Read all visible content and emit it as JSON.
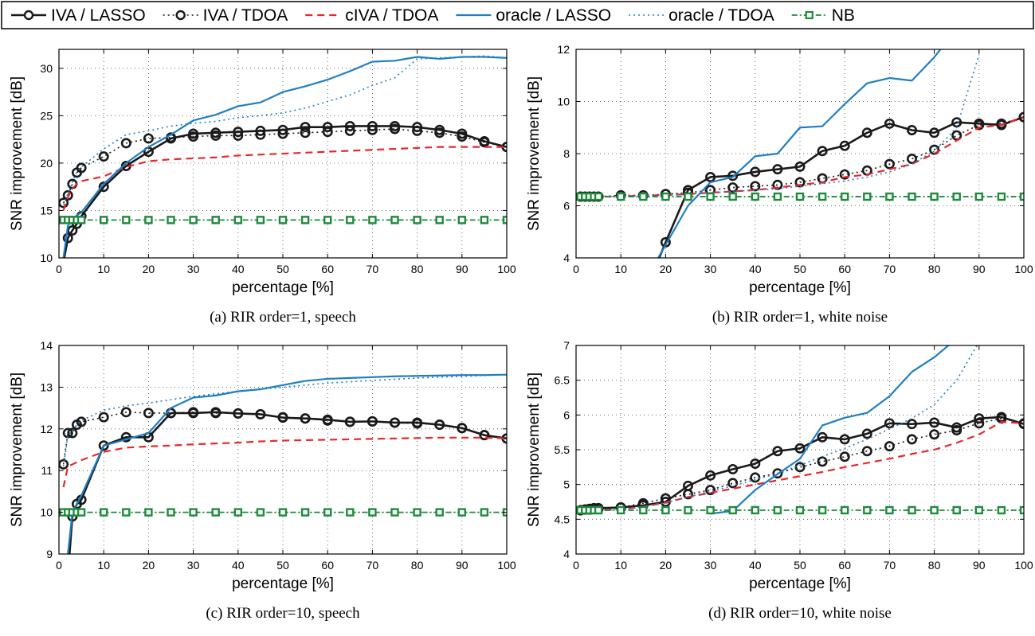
{
  "legend": [
    {
      "label": "IVA / LASSO",
      "color": "#1a1a1a",
      "style": "solid",
      "marker": "circle"
    },
    {
      "label": "IVA / TDOA",
      "color": "#1a1a1a",
      "style": "dotted",
      "marker": "circle"
    },
    {
      "label": "cIVA / TDOA",
      "color": "#e8282b",
      "style": "dashed",
      "marker": "none"
    },
    {
      "label": "oracle / LASSO",
      "color": "#1f7fc2",
      "style": "solid",
      "marker": "none"
    },
    {
      "label": "oracle / TDOA",
      "color": "#1f7fc2",
      "style": "dotted",
      "marker": "none"
    },
    {
      "label": "NB",
      "color": "#1e8a3c",
      "style": "dashdot",
      "marker": "square"
    }
  ],
  "chart_data": [
    {
      "id": "a",
      "type": "line",
      "caption": "(a) RIR order=1, speech",
      "xlabel": "percentage [%]",
      "ylabel": "SNR improvement [dB]",
      "xlim": [
        0,
        100
      ],
      "ylim": [
        10,
        32
      ],
      "xticks": [
        0,
        10,
        20,
        30,
        40,
        50,
        60,
        70,
        80,
        90,
        100
      ],
      "yticks": [
        10,
        15,
        20,
        25,
        30
      ],
      "grid": true,
      "x": [
        1,
        2,
        3,
        4,
        5,
        10,
        15,
        20,
        25,
        30,
        35,
        40,
        45,
        50,
        55,
        60,
        65,
        70,
        75,
        80,
        85,
        90,
        95,
        100
      ],
      "series": [
        {
          "name": "IVA / LASSO",
          "values": [
            9.5,
            12.1,
            12.9,
            13.6,
            14.4,
            17.5,
            19.7,
            21.2,
            22.6,
            23.1,
            23.2,
            23.3,
            23.4,
            23.5,
            23.8,
            23.8,
            23.9,
            23.9,
            23.9,
            23.8,
            23.5,
            23.1,
            22.3,
            21.7
          ]
        },
        {
          "name": "IVA / TDOA",
          "values": [
            15.8,
            16.6,
            17.8,
            19.0,
            19.5,
            20.7,
            22.1,
            22.6,
            22.7,
            22.8,
            22.9,
            22.9,
            23.0,
            23.1,
            23.2,
            23.3,
            23.4,
            23.5,
            23.6,
            23.4,
            23.2,
            22.8,
            22.2,
            21.7
          ]
        },
        {
          "name": "cIVA / TDOA",
          "values": [
            15.0,
            16.4,
            17.3,
            17.8,
            18.1,
            18.6,
            19.6,
            20.2,
            20.4,
            20.5,
            20.6,
            20.8,
            20.9,
            21.0,
            21.1,
            21.2,
            21.3,
            21.4,
            21.5,
            21.6,
            21.7,
            21.7,
            21.7,
            21.7
          ]
        },
        {
          "name": "oracle / LASSO",
          "values": [
            10.0,
            13.4,
            14.0,
            14.5,
            14.8,
            17.8,
            20.0,
            21.7,
            23.0,
            24.5,
            25.1,
            26.0,
            26.4,
            27.5,
            28.1,
            28.8,
            29.7,
            30.7,
            30.8,
            31.2,
            31.0,
            31.2,
            31.2,
            31.1
          ]
        },
        {
          "name": "oracle / TDOA",
          "values": [
            15.6,
            16.8,
            18.0,
            19.1,
            19.6,
            21.5,
            23.0,
            23.4,
            23.9,
            24.2,
            24.4,
            24.8,
            25.0,
            25.3,
            25.8,
            26.5,
            27.2,
            28.2,
            29.0,
            31.0,
            31.1,
            31.2,
            31.3,
            31.1
          ]
        },
        {
          "name": "NB",
          "values": [
            14,
            14,
            14,
            14,
            14,
            14,
            14,
            14,
            14,
            14,
            14,
            14,
            14,
            14,
            14,
            14,
            14,
            14,
            14,
            14,
            14,
            14,
            14,
            14
          ]
        }
      ]
    },
    {
      "id": "b",
      "type": "line",
      "caption": "(b) RIR order=1, white noise",
      "xlabel": "percentage [%]",
      "ylabel": "SNR improvement [dB]",
      "xlim": [
        0,
        100
      ],
      "ylim": [
        4,
        12
      ],
      "xticks": [
        0,
        10,
        20,
        30,
        40,
        50,
        60,
        70,
        80,
        90,
        100
      ],
      "yticks": [
        4,
        6,
        8,
        10,
        12
      ],
      "grid": true,
      "x": [
        1,
        2,
        3,
        4,
        5,
        10,
        15,
        20,
        25,
        30,
        35,
        40,
        45,
        50,
        55,
        60,
        65,
        70,
        75,
        80,
        85,
        90,
        95,
        100
      ],
      "series": [
        {
          "name": "IVA / LASSO",
          "values": [
            null,
            null,
            null,
            null,
            null,
            null,
            2.5,
            4.6,
            6.6,
            7.1,
            7.15,
            7.3,
            7.4,
            7.5,
            8.1,
            8.3,
            8.8,
            9.15,
            8.9,
            8.8,
            9.2,
            9.15,
            9.1,
            9.4
          ]
        },
        {
          "name": "IVA / TDOA",
          "values": [
            6.35,
            6.35,
            6.35,
            6.35,
            6.35,
            6.4,
            6.4,
            6.45,
            6.5,
            6.6,
            6.7,
            6.75,
            6.8,
            6.9,
            7.05,
            7.2,
            7.35,
            7.6,
            7.8,
            8.15,
            8.7,
            9.1,
            9.15,
            9.4
          ]
        },
        {
          "name": "cIVA / TDOA",
          "values": [
            6.35,
            6.35,
            6.35,
            6.35,
            6.35,
            6.35,
            6.4,
            6.4,
            6.45,
            6.5,
            6.55,
            6.6,
            6.7,
            6.8,
            6.9,
            7.1,
            7.2,
            7.4,
            7.6,
            8.0,
            8.5,
            9.0,
            9.1,
            9.4
          ]
        },
        {
          "name": "oracle / LASSO",
          "values": [
            null,
            null,
            null,
            null,
            null,
            null,
            3.0,
            4.5,
            6.0,
            6.9,
            7.1,
            7.9,
            8.0,
            9.0,
            9.05,
            9.9,
            10.7,
            10.9,
            10.8,
            11.7,
            12.8,
            null,
            null,
            null
          ]
        },
        {
          "name": "oracle / TDOA",
          "values": [
            6.35,
            6.35,
            6.35,
            6.35,
            6.35,
            6.35,
            6.4,
            6.4,
            6.45,
            6.5,
            6.55,
            6.6,
            6.65,
            6.75,
            6.85,
            6.95,
            7.1,
            7.3,
            7.6,
            8.1,
            9.0,
            11.8,
            null,
            null
          ]
        },
        {
          "name": "NB",
          "values": [
            6.35,
            6.35,
            6.35,
            6.35,
            6.35,
            6.35,
            6.35,
            6.35,
            6.35,
            6.35,
            6.35,
            6.35,
            6.35,
            6.35,
            6.35,
            6.35,
            6.35,
            6.35,
            6.35,
            6.35,
            6.35,
            6.35,
            6.35,
            6.35
          ]
        }
      ]
    },
    {
      "id": "c",
      "type": "line",
      "caption": "(c) RIR order=10, speech",
      "xlabel": "percentage [%]",
      "ylabel": "SNR improvement [dB]",
      "xlim": [
        0,
        100
      ],
      "ylim": [
        9,
        14
      ],
      "xticks": [
        0,
        10,
        20,
        30,
        40,
        50,
        60,
        70,
        80,
        90,
        100
      ],
      "yticks": [
        9,
        10,
        11,
        12,
        13,
        14
      ],
      "grid": true,
      "x": [
        1,
        2,
        3,
        4,
        5,
        10,
        15,
        20,
        25,
        30,
        35,
        40,
        45,
        50,
        55,
        60,
        65,
        70,
        75,
        80,
        85,
        90,
        95,
        100
      ],
      "series": [
        {
          "name": "IVA / LASSO",
          "values": [
            8.0,
            8.5,
            9.9,
            10.2,
            10.3,
            11.6,
            11.8,
            11.8,
            12.38,
            12.38,
            12.4,
            12.37,
            12.35,
            12.27,
            12.25,
            12.22,
            12.17,
            12.18,
            12.15,
            12.15,
            12.1,
            12.02,
            11.85,
            11.77
          ]
        },
        {
          "name": "IVA / TDOA",
          "values": [
            11.15,
            11.9,
            11.9,
            12.1,
            12.17,
            12.28,
            12.4,
            12.38,
            12.38,
            12.4,
            12.38,
            12.37,
            12.35,
            12.28,
            12.25,
            12.2,
            12.17,
            12.18,
            12.15,
            12.13,
            12.1,
            12.02,
            11.85,
            11.77
          ]
        },
        {
          "name": "cIVA / TDOA",
          "values": [
            10.6,
            11.1,
            11.15,
            11.2,
            11.25,
            11.45,
            11.55,
            11.58,
            11.6,
            11.63,
            11.65,
            11.67,
            11.7,
            11.72,
            11.73,
            11.74,
            11.75,
            11.76,
            11.77,
            11.78,
            11.79,
            11.79,
            11.79,
            11.77
          ]
        },
        {
          "name": "oracle / LASSO",
          "values": [
            8.8,
            9.0,
            10.0,
            10.2,
            10.4,
            11.6,
            11.75,
            11.9,
            12.5,
            12.75,
            12.8,
            12.9,
            12.95,
            13.05,
            13.15,
            13.2,
            13.22,
            13.24,
            13.26,
            13.27,
            13.28,
            13.29,
            13.29,
            13.3
          ]
        },
        {
          "name": "oracle / TDOA",
          "values": [
            11.1,
            11.85,
            11.95,
            12.1,
            12.2,
            12.45,
            12.55,
            12.62,
            12.7,
            12.78,
            12.84,
            12.9,
            12.95,
            13.0,
            13.05,
            13.1,
            13.13,
            13.16,
            13.19,
            13.22,
            13.24,
            13.26,
            13.28,
            13.3
          ]
        },
        {
          "name": "NB",
          "values": [
            10,
            10,
            10,
            10,
            10,
            10,
            10,
            10,
            10,
            10,
            10,
            10,
            10,
            10,
            10,
            10,
            10,
            10,
            10,
            10,
            10,
            10,
            10,
            10
          ]
        }
      ]
    },
    {
      "id": "d",
      "type": "line",
      "caption": "(d) RIR order=10, white noise",
      "xlabel": "percentage [%]",
      "ylabel": "SNR improvement [dB]",
      "xlim": [
        0,
        100
      ],
      "ylim": [
        4,
        7
      ],
      "xticks": [
        0,
        10,
        20,
        30,
        40,
        50,
        60,
        70,
        80,
        90,
        100
      ],
      "yticks": [
        4,
        4.5,
        5,
        5.5,
        6,
        6.5,
        7
      ],
      "grid": true,
      "x": [
        1,
        2,
        3,
        4,
        5,
        10,
        15,
        20,
        25,
        30,
        35,
        40,
        45,
        50,
        55,
        60,
        65,
        70,
        75,
        80,
        85,
        90,
        95,
        100
      ],
      "series": [
        {
          "name": "IVA / LASSO",
          "values": [
            4.63,
            4.64,
            4.65,
            4.66,
            4.66,
            4.67,
            4.7,
            4.75,
            4.98,
            5.13,
            5.22,
            5.3,
            5.48,
            5.52,
            5.68,
            5.65,
            5.73,
            5.88,
            5.87,
            5.89,
            5.82,
            5.95,
            5.97,
            5.87
          ]
        },
        {
          "name": "IVA / TDOA",
          "values": [
            4.63,
            4.64,
            4.64,
            4.65,
            4.65,
            4.67,
            4.73,
            4.8,
            4.86,
            4.92,
            5.02,
            5.1,
            5.16,
            5.25,
            5.33,
            5.4,
            5.48,
            5.55,
            5.65,
            5.72,
            5.78,
            5.88,
            5.95,
            5.88
          ]
        },
        {
          "name": "cIVA / TDOA",
          "values": [
            4.63,
            4.63,
            4.63,
            4.63,
            4.63,
            4.64,
            4.68,
            4.74,
            4.82,
            4.88,
            4.94,
            5.0,
            5.06,
            5.12,
            5.18,
            5.25,
            5.31,
            5.37,
            5.44,
            5.5,
            5.6,
            5.72,
            5.9,
            5.88
          ]
        },
        {
          "name": "oracle / LASSO",
          "values": [
            null,
            null,
            null,
            null,
            null,
            null,
            null,
            null,
            null,
            4.58,
            4.62,
            4.92,
            5.15,
            5.37,
            5.85,
            5.96,
            6.03,
            6.27,
            6.62,
            6.83,
            7.1,
            null,
            null,
            null
          ]
        },
        {
          "name": "oracle / TDOA",
          "values": [
            4.63,
            4.63,
            4.63,
            4.63,
            4.63,
            4.64,
            4.68,
            4.74,
            4.82,
            4.9,
            4.98,
            5.07,
            5.16,
            5.28,
            5.4,
            5.52,
            5.65,
            5.8,
            5.95,
            6.15,
            6.5,
            7.05,
            null,
            null
          ]
        },
        {
          "name": "NB",
          "values": [
            4.63,
            4.63,
            4.63,
            4.63,
            4.63,
            4.63,
            4.63,
            4.63,
            4.63,
            4.63,
            4.63,
            4.63,
            4.63,
            4.63,
            4.63,
            4.63,
            4.63,
            4.63,
            4.63,
            4.63,
            4.63,
            4.63,
            4.63,
            4.63
          ]
        }
      ]
    }
  ]
}
